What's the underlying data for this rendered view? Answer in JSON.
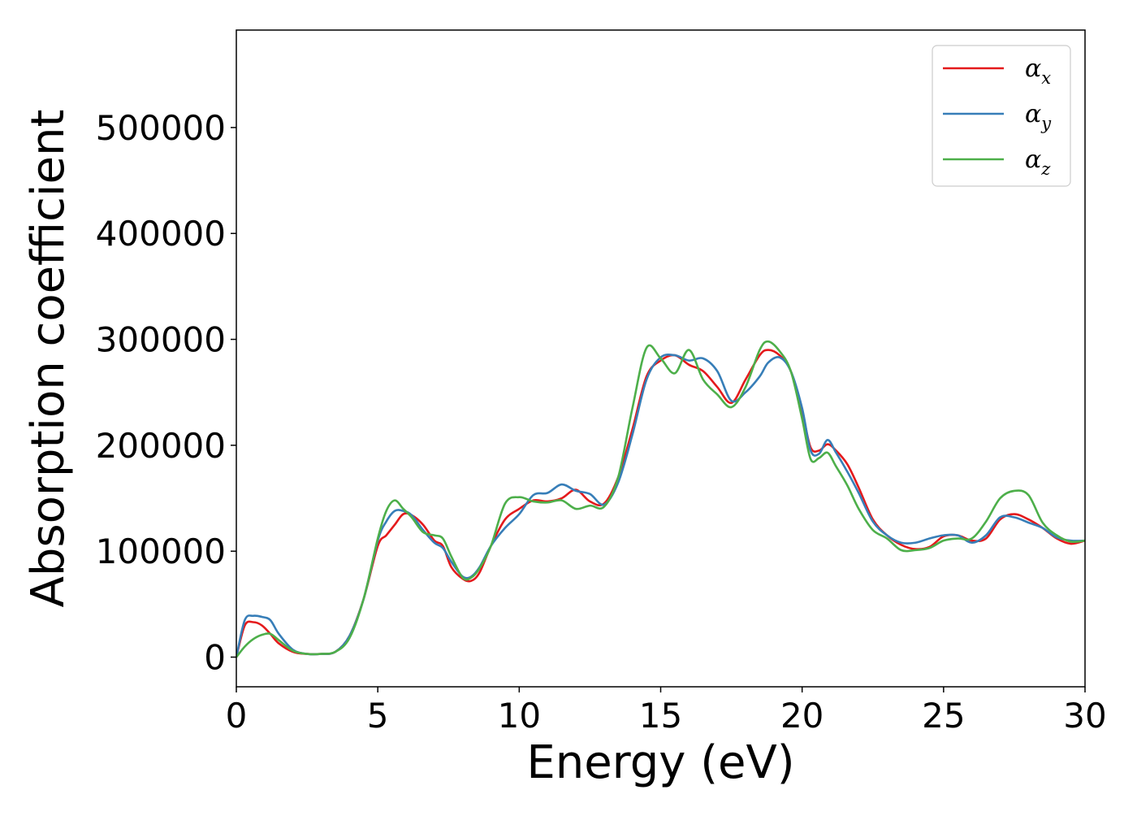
{
  "chart_data": {
    "type": "line",
    "title": "",
    "xlabel": "Energy (eV)",
    "ylabel": "Absorption coefficient",
    "xlim": [
      0,
      30
    ],
    "ylim": [
      -28000,
      592000
    ],
    "xticks": [
      0,
      5,
      10,
      15,
      20,
      25,
      30
    ],
    "xtick_labels": [
      "0",
      "5",
      "10",
      "15",
      "20",
      "25",
      "30"
    ],
    "yticks": [
      0,
      100000,
      200000,
      300000,
      400000,
      500000
    ],
    "ytick_labels": [
      "0",
      "100000",
      "200000",
      "300000",
      "400000",
      "500000"
    ],
    "grid": false,
    "legend_position": "top-right",
    "series": [
      {
        "name": "α",
        "subscript": "x",
        "color": "#e41a1c",
        "x": [
          0,
          0.3,
          0.6,
          0.9,
          1.2,
          1.5,
          2,
          2.5,
          3,
          3.5,
          4,
          4.5,
          5,
          5.3,
          5.6,
          5.9,
          6.2,
          6.6,
          7,
          7.3,
          7.6,
          8,
          8.3,
          8.6,
          9,
          9.5,
          10,
          10.5,
          11,
          11.5,
          12,
          12.5,
          13,
          13.5,
          14,
          14.5,
          15,
          15.5,
          16,
          16.5,
          17,
          17.5,
          18,
          18.5,
          18.8,
          19.2,
          19.6,
          20,
          20.3,
          20.6,
          20.9,
          21.2,
          21.6,
          22,
          22.5,
          23,
          23.5,
          24,
          24.5,
          25,
          25.5,
          26,
          26.5,
          27,
          27.5,
          28,
          28.5,
          29,
          29.5,
          30
        ],
        "y": [
          0,
          30000,
          33000,
          30000,
          22000,
          13000,
          5000,
          3000,
          3000,
          5000,
          20000,
          55000,
          105000,
          115000,
          125000,
          135000,
          134000,
          125000,
          110000,
          105000,
          85000,
          74000,
          72000,
          80000,
          105000,
          130000,
          140000,
          148000,
          147000,
          150000,
          158000,
          147000,
          145000,
          170000,
          215000,
          265000,
          280000,
          285000,
          276000,
          270000,
          255000,
          240000,
          262000,
          285000,
          290000,
          285000,
          270000,
          232000,
          198000,
          195000,
          201000,
          195000,
          182000,
          160000,
          130000,
          115000,
          106000,
          102000,
          104000,
          114000,
          115000,
          110000,
          112000,
          130000,
          135000,
          130000,
          122000,
          112000,
          107000,
          110000
        ]
      },
      {
        "name": "α",
        "subscript": "y",
        "color": "#377eb8",
        "x": [
          0,
          0.3,
          0.6,
          0.9,
          1.2,
          1.5,
          2,
          2.5,
          3,
          3.5,
          4,
          4.5,
          5,
          5.3,
          5.6,
          5.9,
          6.2,
          6.6,
          7,
          7.3,
          7.6,
          8,
          8.3,
          8.6,
          9,
          9.5,
          10,
          10.5,
          11,
          11.5,
          12,
          12.5,
          13,
          13.5,
          14,
          14.5,
          15,
          15.5,
          16,
          16.5,
          17,
          17.5,
          18,
          18.5,
          18.8,
          19.2,
          19.6,
          20,
          20.3,
          20.6,
          20.9,
          21.2,
          21.6,
          22,
          22.5,
          23,
          23.5,
          24,
          24.5,
          25,
          25.5,
          26,
          26.5,
          27,
          27.5,
          28,
          28.5,
          29,
          29.5,
          30
        ],
        "y": [
          0,
          35000,
          39000,
          38000,
          35000,
          22000,
          7000,
          3000,
          3000,
          5000,
          20000,
          55000,
          110000,
          128000,
          138000,
          138000,
          134000,
          120000,
          108000,
          103000,
          90000,
          76000,
          76000,
          85000,
          105000,
          122000,
          135000,
          153000,
          155000,
          163000,
          157000,
          154000,
          144000,
          165000,
          210000,
          262000,
          283000,
          285000,
          280000,
          282000,
          270000,
          242000,
          250000,
          265000,
          278000,
          283000,
          270000,
          235000,
          195000,
          192000,
          205000,
          193000,
          175000,
          155000,
          128000,
          115000,
          108000,
          108000,
          112000,
          115000,
          115000,
          108000,
          115000,
          132000,
          132000,
          127000,
          122000,
          113000,
          110000,
          110000
        ]
      },
      {
        "name": "α",
        "subscript": "z",
        "color": "#4daf4a",
        "x": [
          0,
          0.3,
          0.6,
          0.9,
          1.2,
          1.5,
          2,
          2.5,
          3,
          3.5,
          4,
          4.5,
          5,
          5.3,
          5.6,
          5.9,
          6.2,
          6.6,
          7,
          7.3,
          7.6,
          8,
          8.3,
          8.6,
          9,
          9.5,
          10,
          10.5,
          11,
          11.5,
          12,
          12.5,
          13,
          13.5,
          14,
          14.5,
          15,
          15.5,
          16,
          16.5,
          17,
          17.5,
          18,
          18.5,
          18.8,
          19.2,
          19.6,
          20,
          20.3,
          20.6,
          20.9,
          21.2,
          21.6,
          22,
          22.5,
          23,
          23.5,
          24,
          24.5,
          25,
          25.5,
          26,
          26.5,
          27,
          27.5,
          28,
          28.5,
          29,
          29.5,
          30
        ],
        "y": [
          0,
          10000,
          17000,
          21000,
          22000,
          16000,
          6000,
          3000,
          3000,
          5000,
          18000,
          55000,
          112000,
          138000,
          148000,
          140000,
          132000,
          118000,
          115000,
          112000,
          95000,
          75000,
          75000,
          84000,
          105000,
          145000,
          151000,
          147000,
          146000,
          148000,
          140000,
          143000,
          142000,
          170000,
          235000,
          292000,
          282000,
          268000,
          290000,
          262000,
          248000,
          236000,
          255000,
          290000,
          298000,
          289000,
          270000,
          225000,
          187000,
          188000,
          193000,
          180000,
          162000,
          140000,
          120000,
          112000,
          101000,
          101000,
          103000,
          110000,
          112000,
          112000,
          128000,
          150000,
          157000,
          153000,
          127000,
          115000,
          109000,
          110000
        ]
      }
    ]
  }
}
